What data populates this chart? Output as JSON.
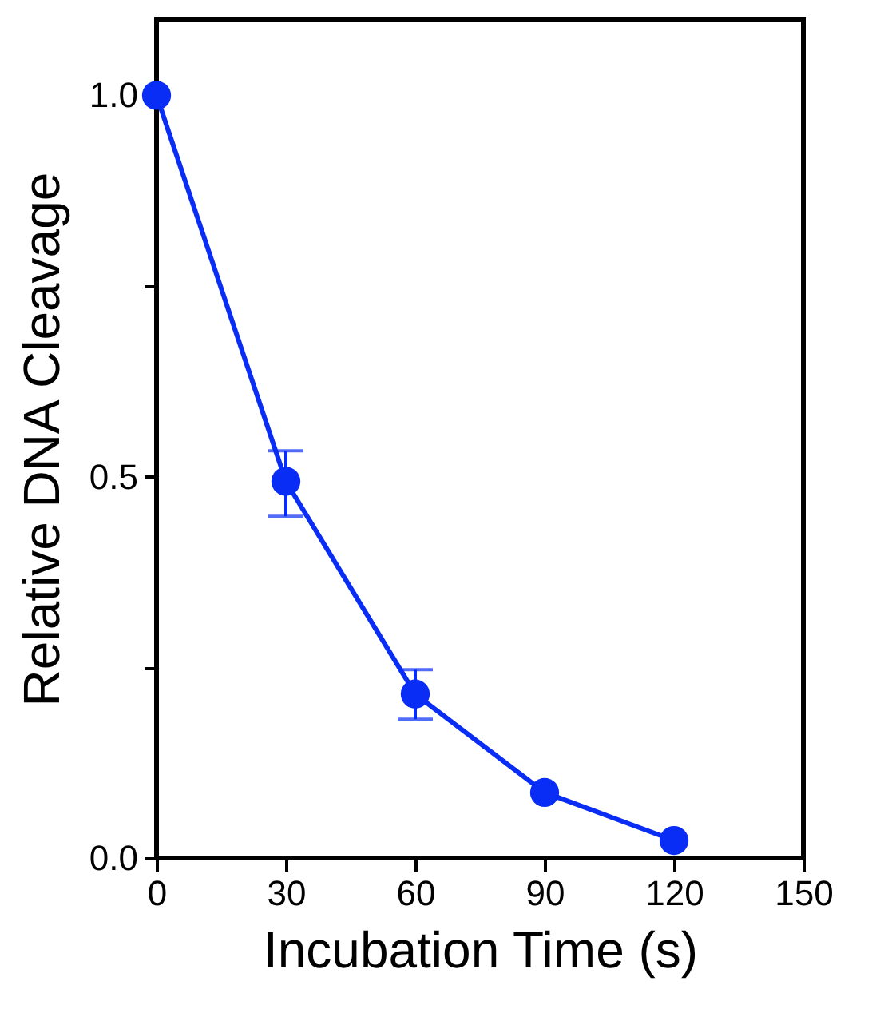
{
  "chart_data": {
    "type": "line",
    "xlabel": "Incubation Time (s)",
    "ylabel": "Relative DNA Cleavage",
    "x": [
      0,
      30,
      60,
      90,
      120
    ],
    "series": [
      {
        "color": "#0a2df5",
        "values": [
          1.0,
          0.494,
          0.215,
          0.086,
          0.023
        ],
        "errors": [
          null,
          [
            0.448,
            0.534
          ],
          [
            0.182,
            0.247
          ],
          null,
          null
        ]
      }
    ],
    "xlim": [
      0,
      150
    ],
    "xticks": [
      0,
      30,
      60,
      90,
      120,
      150
    ],
    "ylim": [
      0,
      1.1
    ],
    "yticks": [
      {
        "value": 0,
        "label": "0.0"
      },
      {
        "value": 0.25,
        "label": null
      },
      {
        "value": 0.5,
        "label": "0.5"
      },
      {
        "value": 0.75,
        "label": null
      },
      {
        "value": 1.0,
        "label": "1.0"
      }
    ],
    "marker": "circle",
    "line_style": "solid",
    "grid": false
  }
}
